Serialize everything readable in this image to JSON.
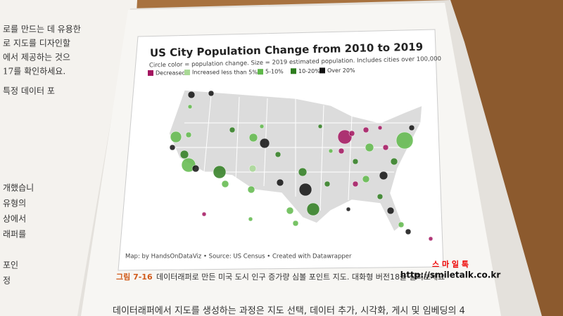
{
  "map": {
    "title": "US City Population Change from 2010 to 2019",
    "subtitle": "Circle color = population change. Size = 2019 estimated population. Includes cities over 100,000",
    "legend": [
      {
        "label": "Decreased",
        "color": "#a3145f"
      },
      {
        "label": "Increased less than 5%",
        "color": "#a8d895"
      },
      {
        "label": "5-10%",
        "color": "#5fb84a"
      },
      {
        "label": "10-20%",
        "color": "#2e7d1f"
      },
      {
        "label": "Over 20%",
        "color": "#111111"
      }
    ],
    "credit": "Map: by HandsOnDataViz • Source: US Census • Created with Datawrapper"
  },
  "caption": {
    "label": "그림 7-16",
    "text": "데이터래퍼로 만든 미국 도시 인구 증가량 심볼 포인트 지도. 대화형 버전18을 살펴보세요"
  },
  "left_page": [
    "로를 만드는 데 유용한",
    "로 지도를 디자인할",
    "에서 제공하는 것으",
    "17를 확인하세요.",
    "특정 데이터 포",
    "개했습니",
    "유형의",
    "상에서",
    "래퍼를",
    "포인",
    "정"
  ],
  "body_text": "데이터래퍼에서 지도를 생성하는 과정은 지도 선택, 데이터 추가, 시각화, 게시 및 임베딩의 4",
  "watermark": {
    "name": "스 마 일 톡",
    "url": "http://smiletalk.co.kr"
  }
}
